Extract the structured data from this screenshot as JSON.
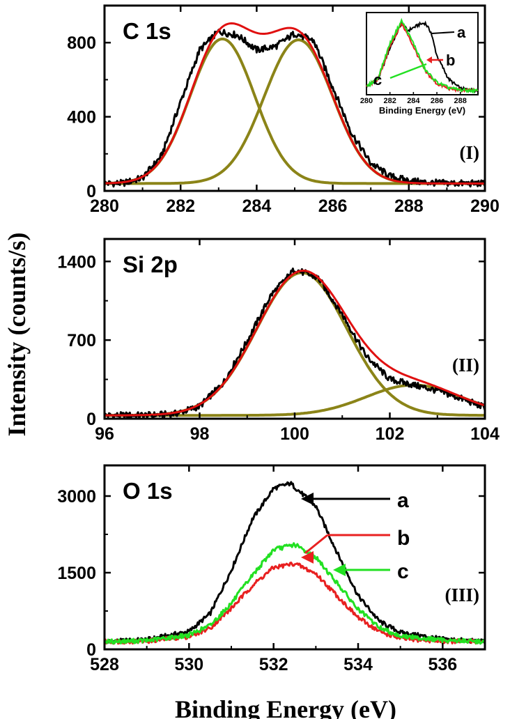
{
  "colors": {
    "raw": "#000000",
    "fit_envelope": "#e01010",
    "component": "#8b8418",
    "a": "#000000",
    "b": "#e82020",
    "c": "#22e022"
  },
  "chart_data": [
    {
      "id": "panel-I",
      "type": "line",
      "title": "C 1s",
      "panel_tag": "(I)",
      "xlabel": "",
      "ylabel": "",
      "xlim": [
        280,
        290
      ],
      "ylim": [
        0,
        1000
      ],
      "x_ticks": [
        280,
        282,
        284,
        286,
        288,
        290
      ],
      "y_ticks": [
        0,
        400,
        800
      ],
      "baseline": 40,
      "components": [
        {
          "center": 283.1,
          "height": 780,
          "sigma": 0.85
        },
        {
          "center": 285.1,
          "height": 775,
          "sigma": 0.9
        }
      ],
      "series": [
        {
          "role": "raw",
          "x": [
            280.0,
            280.5,
            281.0,
            281.5,
            282.0,
            282.5,
            283.0,
            283.5,
            284.0,
            284.5,
            285.0,
            285.5,
            286.0,
            286.5,
            287.0,
            287.5,
            288.0,
            288.5,
            289.0,
            289.5,
            290.0
          ],
          "values": [
            40,
            42,
            70,
            190,
            480,
            760,
            860,
            840,
            760,
            780,
            850,
            810,
            560,
            310,
            150,
            80,
            55,
            45,
            42,
            40,
            40
          ]
        },
        {
          "role": "fit",
          "x": [
            280.0,
            280.5,
            281.0,
            281.5,
            282.0,
            282.5,
            283.0,
            283.5,
            284.0,
            284.5,
            285.0,
            285.5,
            286.0,
            286.5,
            287.0,
            287.5,
            288.0,
            288.5,
            289.0,
            289.5,
            290.0
          ],
          "values": [
            40,
            41,
            65,
            180,
            470,
            750,
            870,
            820,
            720,
            760,
            820,
            790,
            560,
            300,
            140,
            70,
            48,
            42,
            40,
            40,
            40
          ]
        }
      ],
      "inset": {
        "xlabel": "Binding Energy (eV)",
        "x_ticks": [
          280,
          282,
          284,
          286,
          288
        ],
        "xlim": [
          280,
          289.5
        ],
        "ylim": [
          0,
          1
        ],
        "series": [
          {
            "name": "a",
            "x": [
              280,
              281,
              282,
              283,
              283.5,
              284,
              284.5,
              285,
              285.5,
              286,
              287,
              288,
              289.5
            ],
            "values": [
              0.1,
              0.2,
              0.6,
              0.92,
              0.82,
              0.86,
              0.9,
              0.92,
              0.8,
              0.5,
              0.2,
              0.08,
              0.05
            ]
          },
          {
            "name": "b",
            "x": [
              280,
              281,
              282,
              283,
              284,
              285,
              286,
              287,
              288,
              289.5
            ],
            "values": [
              0.1,
              0.2,
              0.62,
              0.92,
              0.62,
              0.3,
              0.14,
              0.08,
              0.06,
              0.05
            ]
          },
          {
            "name": "c",
            "x": [
              280,
              281,
              282,
              283,
              284,
              285,
              286,
              287,
              288,
              289.5
            ],
            "values": [
              0.1,
              0.22,
              0.66,
              0.95,
              0.66,
              0.32,
              0.16,
              0.09,
              0.06,
              0.05
            ]
          }
        ]
      }
    },
    {
      "id": "panel-II",
      "type": "line",
      "title": "Si 2p",
      "panel_tag": "(II)",
      "xlabel": "",
      "ylabel": "",
      "xlim": [
        96,
        104
      ],
      "ylim": [
        0,
        1600
      ],
      "x_ticks": [
        96,
        98,
        100,
        102,
        104
      ],
      "y_ticks": [
        0,
        700,
        1400
      ],
      "baseline": 30,
      "components": [
        {
          "center": 100.15,
          "height": 1270,
          "sigma": 0.95
        },
        {
          "center": 102.5,
          "height": 270,
          "sigma": 1.0
        }
      ],
      "series": [
        {
          "role": "raw",
          "x": [
            96,
            96.5,
            97,
            97.5,
            98,
            98.5,
            99,
            99.5,
            100,
            100.5,
            101,
            101.5,
            102,
            102.5,
            103,
            103.5,
            104
          ],
          "values": [
            30,
            30,
            32,
            45,
            110,
            320,
            690,
            1100,
            1330,
            1250,
            930,
            560,
            350,
            300,
            250,
            180,
            100
          ]
        },
        {
          "role": "fit",
          "x": [
            96,
            96.5,
            97,
            97.5,
            98,
            98.5,
            99,
            99.5,
            100,
            100.5,
            101,
            101.5,
            102,
            102.5,
            103,
            103.5,
            104
          ],
          "values": [
            30,
            30,
            31,
            40,
            100,
            300,
            660,
            1080,
            1300,
            1240,
            910,
            540,
            345,
            295,
            245,
            170,
            95
          ]
        }
      ]
    },
    {
      "id": "panel-III",
      "type": "line",
      "title": "O 1s",
      "panel_tag": "(III)",
      "xlabel": "Binding Energy (eV)",
      "ylabel": "Intensity (counts/s)",
      "xlim": [
        528,
        537
      ],
      "ylim": [
        0,
        3600
      ],
      "x_ticks": [
        528,
        530,
        532,
        534,
        536
      ],
      "y_ticks": [
        0,
        1500,
        3000
      ],
      "series": [
        {
          "name": "a",
          "x": [
            528,
            529,
            530,
            530.5,
            531,
            531.5,
            532,
            532.4,
            533,
            533.5,
            534,
            534.5,
            535,
            536,
            537
          ],
          "values": [
            150,
            190,
            350,
            700,
            1550,
            2550,
            3150,
            3250,
            2800,
            1900,
            1050,
            550,
            330,
            200,
            150
          ]
        },
        {
          "name": "b",
          "x": [
            528,
            529,
            530,
            530.5,
            531,
            531.5,
            532,
            532.5,
            533,
            533.5,
            534,
            534.5,
            535,
            536,
            537
          ],
          "values": [
            150,
            160,
            250,
            420,
            800,
            1250,
            1600,
            1680,
            1480,
            1050,
            620,
            350,
            210,
            160,
            150
          ]
        },
        {
          "name": "c",
          "x": [
            528,
            529,
            530,
            530.5,
            531,
            531.5,
            532,
            532.5,
            533,
            533.5,
            534,
            534.5,
            535,
            536,
            537
          ],
          "values": [
            150,
            170,
            280,
            470,
            900,
            1450,
            1950,
            2050,
            1800,
            1300,
            780,
            430,
            260,
            180,
            150
          ]
        }
      ]
    }
  ],
  "figure": {
    "ylabel": "Intensity (counts/s)",
    "xlabel": "Binding Energy (eV)"
  }
}
